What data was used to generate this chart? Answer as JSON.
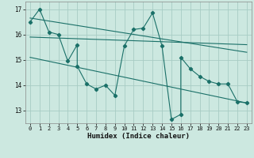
{
  "xlabel": "Humidex (Indice chaleur)",
  "background_color": "#cce8e0",
  "grid_color": "#a8ccC4",
  "line_color": "#1a7068",
  "x_data": [
    0,
    1,
    2,
    3,
    4,
    5,
    5,
    6,
    7,
    8,
    9,
    10,
    11,
    12,
    13,
    14,
    15,
    16,
    16,
    17,
    18,
    19,
    20,
    21,
    22,
    23
  ],
  "y_data": [
    16.5,
    17.0,
    16.1,
    16.0,
    14.95,
    15.6,
    14.75,
    14.05,
    13.85,
    14.0,
    13.6,
    15.55,
    16.2,
    16.25,
    16.85,
    15.55,
    12.65,
    12.85,
    15.1,
    14.65,
    14.35,
    14.15,
    14.05,
    14.05,
    13.35,
    13.3
  ],
  "trend1_x": [
    0,
    23
  ],
  "trend1_y": [
    16.65,
    15.3
  ],
  "trend2_x": [
    0,
    23
  ],
  "trend2_y": [
    15.9,
    15.6
  ],
  "trend3_x": [
    0,
    23
  ],
  "trend3_y": [
    15.1,
    13.3
  ],
  "xlim": [
    -0.5,
    23.5
  ],
  "ylim": [
    12.5,
    17.3
  ],
  "xticks": [
    0,
    1,
    2,
    3,
    4,
    5,
    6,
    7,
    8,
    9,
    10,
    11,
    12,
    13,
    14,
    15,
    16,
    17,
    18,
    19,
    20,
    21,
    22,
    23
  ],
  "yticks": [
    13,
    14,
    15,
    16,
    17
  ]
}
